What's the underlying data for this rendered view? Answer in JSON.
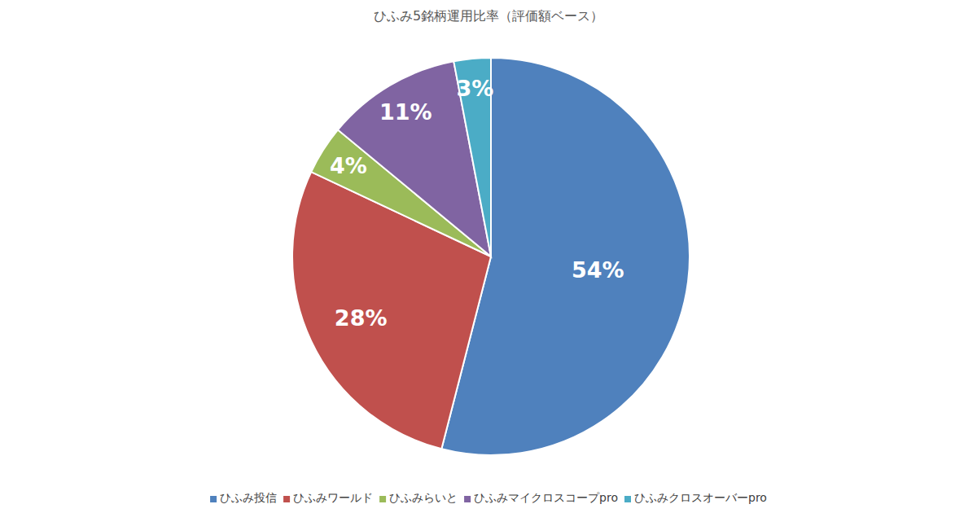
{
  "chart_data": {
    "type": "pie",
    "title": "ひふみ5銘柄運用比率（評価額ベース）",
    "categories": [
      "ひふみ投信",
      "ひふみワールド",
      "ひふみらいと",
      "ひふみマイクロスコープpro",
      "ひふみクロスオーバーpro"
    ],
    "values": [
      54,
      28,
      4,
      11,
      3
    ],
    "value_labels": [
      "54%",
      "28%",
      "4%",
      "11%",
      "3%"
    ],
    "colors": [
      "#4f81bd",
      "#c0504d",
      "#9bbb59",
      "#8064a2",
      "#4bacc6"
    ],
    "data_labels": true,
    "legend": "bottom"
  }
}
